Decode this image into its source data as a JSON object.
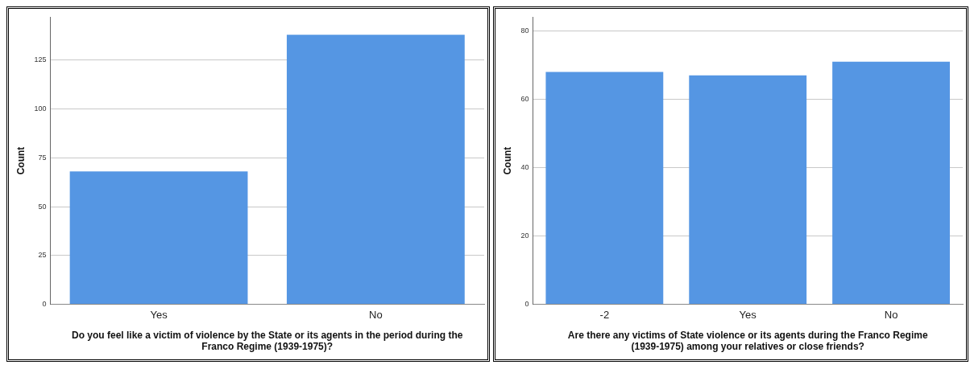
{
  "chart_data": [
    {
      "type": "bar",
      "categories": [
        "Yes",
        "No"
      ],
      "values": [
        68,
        138
      ],
      "color": "#5596e3",
      "ylabel": "Count",
      "xlabel": "Do you feel like a victim of violence by the State or its agents in the period during the Franco Regime (1939-1975)?",
      "ylim": [
        0,
        147
      ],
      "yticks": [
        0,
        25,
        50,
        75,
        100,
        125
      ],
      "grid": "y",
      "legend": false
    },
    {
      "type": "bar",
      "categories": [
        "-2",
        "Yes",
        "No"
      ],
      "values": [
        68,
        67,
        71
      ],
      "color": "#5596e3",
      "ylabel": "Count",
      "xlabel": "Are there any victims of State violence or its agents during the Franco Regime (1939-1975) among your relatives or close friends?",
      "ylim": [
        0,
        84
      ],
      "yticks": [
        0,
        20,
        40,
        60,
        80
      ],
      "grid": "y",
      "legend": false
    }
  ]
}
